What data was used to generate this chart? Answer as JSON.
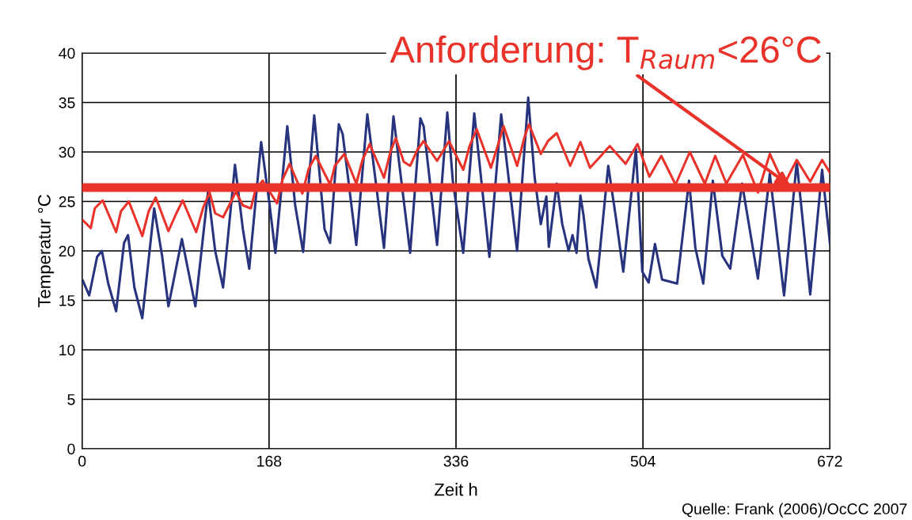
{
  "chart_data": {
    "type": "line",
    "xlabel": "Zeit h",
    "ylabel": "Temperatur °C",
    "xlim": [
      0,
      672
    ],
    "xticks": [
      0,
      168,
      336,
      504,
      672
    ],
    "ylim": [
      0,
      40
    ],
    "yticks": [
      0,
      5,
      10,
      15,
      20,
      25,
      30,
      35,
      40
    ],
    "grid": true,
    "marker": "none",
    "line_style": "solid",
    "series": [
      {
        "color": "#27337d",
        "x": [
          0.7,
          6.4,
          13.5,
          17.8,
          23.5,
          30.6,
          37.7,
          41.3,
          47.0,
          54.1,
          64.8,
          71.9,
          77.6,
          89.7,
          101.8,
          113.2,
          119.6,
          126.7,
          137.4,
          144.5,
          150.2,
          160.9,
          168.0,
          173.7,
          184.4,
          191.5,
          198.6,
          208.6,
          217.9,
          222.9,
          230.7,
          234.2,
          246.4,
          256.3,
          271.3,
          279.8,
          294.8,
          304.0,
          306.9,
          319.0,
          328.2,
          333.2,
          342.5,
          352.4,
          366.0,
          376.6,
          390.9,
          400.9,
          406.6,
          412.2,
          417.2,
          419.4,
          426.5,
          431.5,
          437.2,
          440.7,
          444.3,
          447.8,
          450.7,
          455.0,
          462.1,
          472.8,
          479.9,
          486.3,
          497.7,
          503.4,
          509.1,
          514.8,
          521.2,
          534.7,
          545.4,
          551.1,
          558.2,
          566.8,
          575.3,
          582.4,
          593.1,
          607.3,
          618.0,
          630.8,
          642.2,
          654.3,
          665.0,
          672.0
        ],
        "values": [
          17.0,
          15.5,
          19.4,
          20.0,
          16.7,
          13.9,
          20.8,
          21.6,
          16.3,
          13.2,
          24.3,
          19.5,
          14.4,
          21.2,
          14.4,
          26.0,
          20.0,
          16.3,
          28.7,
          22.2,
          18.2,
          31.0,
          25.1,
          19.8,
          32.6,
          24.6,
          19.9,
          33.7,
          22.2,
          20.8,
          32.8,
          31.8,
          20.6,
          33.8,
          20.3,
          33.6,
          19.8,
          33.4,
          32.6,
          20.6,
          34.0,
          27.0,
          19.8,
          33.9,
          19.4,
          33.8,
          20.0,
          35.5,
          27.5,
          22.7,
          25.5,
          20.4,
          26.8,
          22.7,
          20.0,
          21.6,
          19.8,
          25.6,
          23.5,
          19.2,
          16.3,
          28.6,
          23.2,
          17.9,
          30.3,
          17.9,
          16.8,
          20.7,
          17.1,
          16.7,
          27.1,
          20.3,
          16.7,
          27.1,
          19.5,
          18.2,
          26.8,
          17.2,
          27.8,
          15.5,
          29.0,
          15.6,
          28.2,
          20.8
        ]
      },
      {
        "color": "#e8322a",
        "x": [
          0.7,
          7.8,
          11.4,
          18.5,
          30.6,
          34.9,
          42.0,
          54.1,
          59.8,
          66.2,
          77.6,
          84.7,
          90.4,
          102.5,
          108.9,
          114.6,
          119.6,
          126.7,
          133.9,
          138.1,
          144.5,
          151.7,
          155.9,
          162.3,
          175.2,
          180.1,
          186.5,
          197.9,
          203.6,
          210.0,
          222.9,
          227.1,
          235.7,
          246.4,
          252.0,
          258.5,
          271.3,
          277.0,
          281.9,
          289.1,
          294.8,
          301.2,
          306.9,
          319.0,
          329.7,
          342.5,
          348.2,
          354.6,
          367.4,
          374.5,
          378.8,
          390.9,
          397.3,
          401.6,
          412.2,
          418.6,
          426.5,
          438.6,
          447.8,
          456.4,
          474.2,
          488.4,
          499.1,
          509.8,
          520.5,
          533.3,
          546.1,
          559.6,
          568.9,
          578.9,
          593.8,
          607.3,
          618.0,
          630.8,
          642.2,
          654.3,
          665.0,
          672.0
        ],
        "values": [
          23.1,
          22.3,
          24.3,
          25.1,
          21.9,
          24.0,
          25.0,
          21.5,
          24.0,
          25.4,
          22.0,
          23.8,
          25.1,
          21.9,
          24.4,
          25.9,
          23.8,
          23.4,
          25.0,
          26.0,
          24.6,
          24.3,
          26.2,
          27.1,
          24.8,
          27.2,
          28.8,
          25.8,
          28.3,
          29.6,
          26.7,
          28.6,
          29.8,
          26.8,
          29.2,
          30.8,
          27.4,
          30.0,
          31.4,
          29.0,
          28.6,
          30.2,
          31.1,
          29.1,
          31.1,
          28.2,
          30.6,
          32.3,
          28.4,
          31.0,
          32.6,
          28.6,
          31.4,
          32.8,
          29.8,
          31.1,
          31.9,
          28.6,
          31.0,
          28.4,
          30.6,
          28.8,
          30.8,
          27.5,
          29.6,
          26.7,
          30.0,
          26.8,
          29.6,
          26.8,
          29.7,
          25.9,
          29.8,
          26.7,
          29.2,
          27.0,
          29.2,
          27.9
        ]
      }
    ],
    "ref_lines": [
      {
        "axis": "y",
        "value": 26.4,
        "label": "Anforderung: T$_{Raum}$<26°C",
        "color": "#e8322a",
        "line_style": "solid"
      }
    ],
    "annotations": [
      "Quelle: Frank (2006)/OcCC 2007"
    ]
  }
}
